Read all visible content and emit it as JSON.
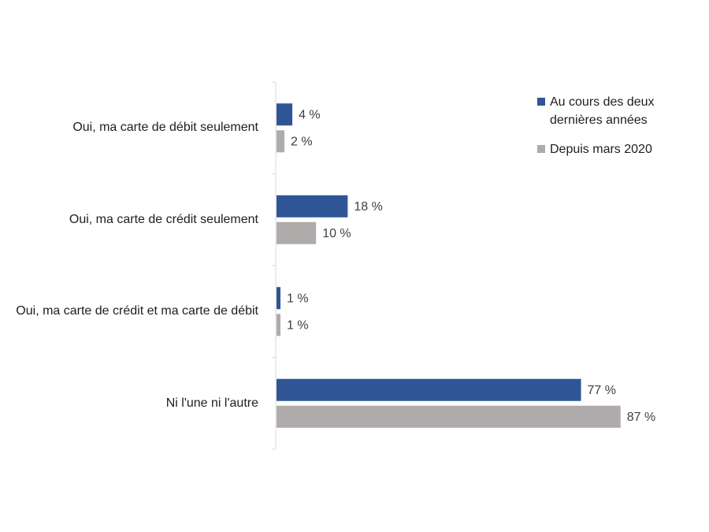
{
  "chart_data": {
    "type": "bar",
    "orientation": "horizontal",
    "categories": [
      "Oui, ma carte de débit seulement",
      "Oui, ma carte de crédit seulement",
      "Oui, ma carte de crédit et ma carte de débit",
      "Ni l'une ni l'autre"
    ],
    "series": [
      {
        "name": "Au cours des deux dernières années",
        "color": "#2f5597",
        "values": [
          4,
          18,
          1,
          77
        ],
        "value_labels": [
          "4 %",
          "18 %",
          "1 %",
          "77 %"
        ]
      },
      {
        "name": "Depuis mars 2020",
        "color": "#afabab",
        "values": [
          2,
          10,
          1,
          87
        ],
        "value_labels": [
          "2 %",
          "10 %",
          "1 %",
          "87 %"
        ]
      }
    ],
    "legend": "top-right"
  }
}
